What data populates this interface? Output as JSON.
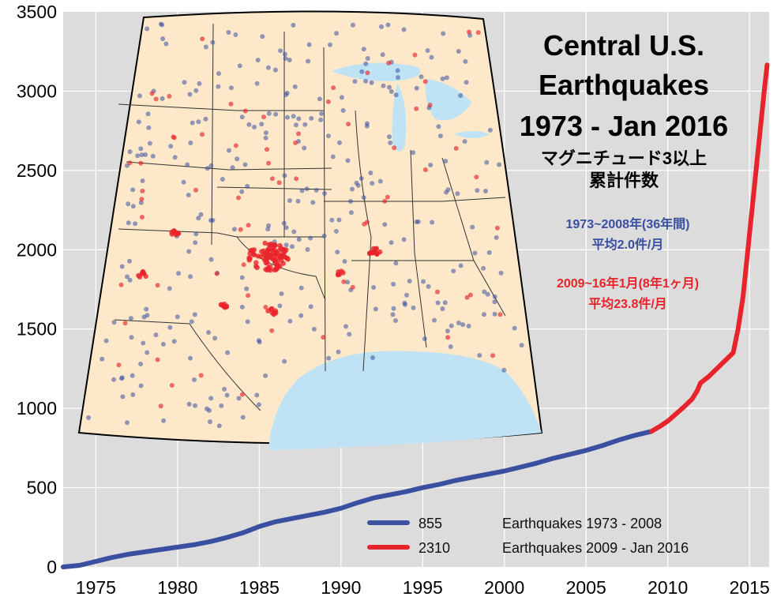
{
  "chart_data": {
    "type": "line",
    "title_lines": [
      "Central U.S.",
      "Earthquakes",
      "1973 - Jan 2016"
    ],
    "subtitle_lines": [
      "マグニチュード3以上",
      "累計件数"
    ],
    "xlabel": "",
    "ylabel": "",
    "xlim": [
      1973,
      2016.2
    ],
    "ylim": [
      0,
      3500
    ],
    "x_ticks": [
      "1975",
      "1980",
      "1985",
      "1990",
      "1995",
      "2000",
      "2005",
      "2010",
      "2015"
    ],
    "y_ticks": [
      "0",
      "500",
      "1000",
      "1500",
      "2000",
      "2500",
      "3000",
      "3500"
    ],
    "grid": true,
    "legend_position": "bottom-right",
    "series": [
      {
        "name": "Earthquakes 1973 - 2008",
        "count_label": "855",
        "color": "#3a4fa0",
        "x": [
          1973.0,
          1974.0,
          1975.0,
          1976.0,
          1977.0,
          1978.0,
          1979.0,
          1980.0,
          1981.0,
          1982.0,
          1983.0,
          1984.0,
          1985.0,
          1986.0,
          1987.0,
          1988.0,
          1989.0,
          1990.0,
          1991.0,
          1992.0,
          1993.0,
          1994.0,
          1995.0,
          1996.0,
          1997.0,
          1998.0,
          1999.0,
          2000.0,
          2001.0,
          2002.0,
          2003.0,
          2004.0,
          2005.0,
          2006.0,
          2007.0,
          2008.0,
          2009.0
        ],
        "y": [
          0,
          10,
          35,
          60,
          80,
          95,
          110,
          125,
          140,
          160,
          185,
          215,
          255,
          285,
          305,
          325,
          345,
          370,
          405,
          435,
          455,
          475,
          500,
          520,
          545,
          565,
          585,
          605,
          630,
          655,
          685,
          710,
          735,
          765,
          800,
          830,
          855
        ]
      },
      {
        "name": "Earthquakes 2009 - Jan 2016",
        "count_label": "2310",
        "color": "#e8232b",
        "x": [
          2009.0,
          2009.5,
          2010.0,
          2010.5,
          2011.0,
          2011.5,
          2011.8,
          2012.0,
          2012.5,
          2013.0,
          2013.5,
          2014.0,
          2014.3,
          2014.6,
          2015.0,
          2015.3,
          2015.6,
          2015.9,
          2016.08
        ],
        "y": [
          855,
          885,
          920,
          965,
          1010,
          1060,
          1110,
          1160,
          1200,
          1250,
          1300,
          1350,
          1500,
          1700,
          2100,
          2400,
          2700,
          3000,
          3165
        ]
      }
    ],
    "annotations": [
      {
        "line1": "1973~2008年(36年間)",
        "line2": "平均2.0件/月",
        "color": "#3a4fa0"
      },
      {
        "line1": "2009~16年1月(8年1ヶ月)",
        "line2": "平均23.8件/月",
        "color": "#e8232b"
      }
    ],
    "inset": {
      "type": "map",
      "description": "Central U.S. map with earthquake locations (blue 1973-2008, red 2009-2016)",
      "land_color": "#fde9c9",
      "water_color": "#bfe3f5"
    }
  }
}
